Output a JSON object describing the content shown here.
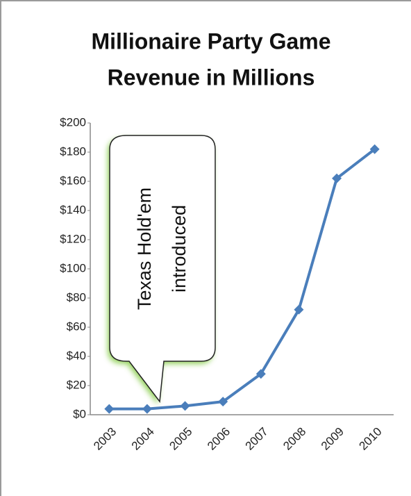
{
  "chart_data": {
    "type": "line",
    "title": [
      "Millionaire Party Game",
      "Revenue in Millions"
    ],
    "categories": [
      "2003",
      "2004",
      "2005",
      "2006",
      "2007",
      "2008",
      "2009",
      "2010"
    ],
    "series": [
      {
        "name": "Revenue",
        "color": "#4a7ebb",
        "values": [
          4,
          4,
          6,
          9,
          28,
          72,
          162,
          182
        ]
      }
    ],
    "ylim": [
      0,
      200
    ],
    "yticks": [
      {
        "value": 0,
        "label": "$0"
      },
      {
        "value": 20,
        "label": "$20"
      },
      {
        "value": 40,
        "label": "$40"
      },
      {
        "value": 60,
        "label": "$60"
      },
      {
        "value": 80,
        "label": "$80"
      },
      {
        "value": 100,
        "label": "$100"
      },
      {
        "value": 120,
        "label": "$120"
      },
      {
        "value": 140,
        "label": "$140"
      },
      {
        "value": 160,
        "label": "$160"
      },
      {
        "value": 180,
        "label": "$180"
      },
      {
        "value": 200,
        "label": "$200"
      }
    ],
    "grid": false,
    "annotation": [
      "Texas Hold'em",
      "introduced"
    ]
  }
}
